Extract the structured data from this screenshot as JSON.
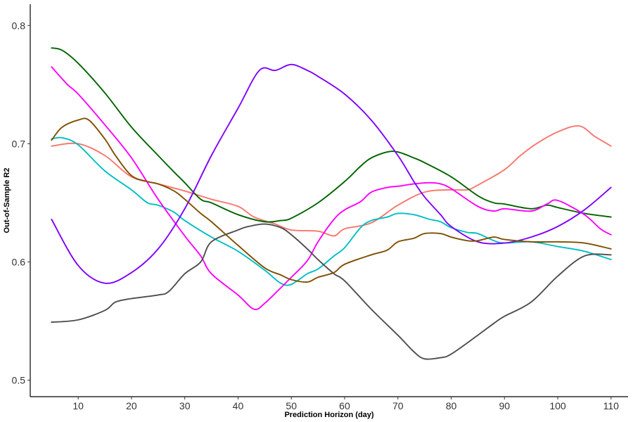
{
  "chart_data": {
    "type": "line",
    "title": "",
    "xlabel": "Prediction Horizon (day)",
    "ylabel": "Out-of-Sample R2",
    "xlim": [
      1,
      113.2
    ],
    "ylim": [
      0.486,
      0.818
    ],
    "x_ticks": [
      10,
      20,
      30,
      40,
      50,
      60,
      70,
      80,
      90,
      100,
      110
    ],
    "y_ticks": [
      0.5,
      0.6,
      0.7,
      0.8
    ],
    "x_tick_labels": [
      "10",
      "20",
      "30",
      "40",
      "50",
      "60",
      "70",
      "80",
      "90",
      "100",
      "110"
    ],
    "y_tick_labels": [
      "0.5",
      "0.6",
      "0.7",
      "0.8"
    ],
    "grid": false,
    "legend": "none",
    "series": [
      {
        "color": "#F8766D",
        "x": [
          5,
          10,
          15,
          20,
          25,
          30,
          35,
          40,
          43,
          47,
          50,
          55,
          58,
          60,
          65,
          70,
          75,
          80,
          83,
          85,
          90,
          93,
          96,
          100,
          104,
          107,
          110
        ],
        "y": [
          0.698,
          0.7,
          0.69,
          0.672,
          0.666,
          0.66,
          0.653,
          0.647,
          0.638,
          0.632,
          0.627,
          0.626,
          0.622,
          0.628,
          0.633,
          0.648,
          0.659,
          0.661,
          0.661,
          0.665,
          0.678,
          0.69,
          0.7,
          0.71,
          0.715,
          0.706,
          0.698
        ]
      },
      {
        "color": "#00BFC4",
        "x": [
          5,
          7,
          10,
          15,
          20,
          23,
          25,
          28,
          30,
          35,
          40,
          45,
          48,
          50,
          53,
          55,
          58,
          60,
          63,
          65,
          68,
          70,
          73,
          76,
          78,
          80,
          83,
          85,
          88,
          90,
          95,
          100,
          105,
          110
        ],
        "y": [
          0.704,
          0.705,
          0.699,
          0.677,
          0.661,
          0.65,
          0.648,
          0.642,
          0.635,
          0.621,
          0.609,
          0.593,
          0.582,
          0.581,
          0.59,
          0.594,
          0.605,
          0.612,
          0.629,
          0.635,
          0.638,
          0.641,
          0.64,
          0.636,
          0.634,
          0.629,
          0.625,
          0.624,
          0.618,
          0.616,
          0.617,
          0.613,
          0.609,
          0.602
        ]
      },
      {
        "color": "#006400",
        "x": [
          5,
          7,
          10,
          15,
          20,
          25,
          28,
          30,
          33,
          35,
          40,
          45,
          48,
          50,
          55,
          60,
          63,
          65,
          68,
          70,
          73,
          75,
          80,
          85,
          88,
          90,
          95,
          98,
          100,
          105,
          110
        ],
        "y": [
          0.781,
          0.779,
          0.768,
          0.743,
          0.714,
          0.69,
          0.676,
          0.667,
          0.653,
          0.65,
          0.64,
          0.634,
          0.635,
          0.637,
          0.65,
          0.668,
          0.681,
          0.688,
          0.693,
          0.693,
          0.688,
          0.684,
          0.672,
          0.656,
          0.65,
          0.649,
          0.645,
          0.648,
          0.646,
          0.641,
          0.638
        ]
      },
      {
        "color": "#FF00FF",
        "x": [
          5,
          8,
          10,
          15,
          20,
          25,
          30,
          33,
          35,
          40,
          43,
          45,
          48,
          50,
          53,
          55,
          58,
          60,
          63,
          65,
          68,
          70,
          73,
          76,
          78,
          80,
          85,
          88,
          90,
          95,
          98,
          100,
          105,
          108,
          110
        ],
        "y": [
          0.765,
          0.75,
          0.742,
          0.716,
          0.688,
          0.653,
          0.622,
          0.605,
          0.59,
          0.572,
          0.56,
          0.565,
          0.578,
          0.587,
          0.601,
          0.617,
          0.636,
          0.644,
          0.651,
          0.659,
          0.663,
          0.664,
          0.666,
          0.667,
          0.666,
          0.662,
          0.647,
          0.643,
          0.645,
          0.643,
          0.649,
          0.652,
          0.64,
          0.628,
          0.623
        ]
      },
      {
        "color": "#7F00FF",
        "x": [
          5,
          10,
          15,
          20,
          25,
          30,
          35,
          40,
          44,
          47,
          50,
          53,
          55,
          60,
          65,
          70,
          73,
          75,
          78,
          80,
          85,
          90,
          95,
          100,
          105,
          110
        ],
        "y": [
          0.636,
          0.597,
          0.582,
          0.591,
          0.611,
          0.645,
          0.69,
          0.73,
          0.762,
          0.762,
          0.767,
          0.762,
          0.757,
          0.742,
          0.72,
          0.69,
          0.668,
          0.655,
          0.64,
          0.63,
          0.617,
          0.616,
          0.621,
          0.63,
          0.644,
          0.663
        ]
      },
      {
        "color": "#4D4D4D",
        "x": [
          5,
          10,
          15,
          17,
          20,
          25,
          27,
          30,
          33,
          35,
          40,
          42,
          45,
          48,
          50,
          53,
          55,
          58,
          60,
          65,
          70,
          73,
          75,
          78,
          80,
          85,
          88,
          90,
          95,
          100,
          105,
          110
        ],
        "y": [
          0.549,
          0.551,
          0.559,
          0.566,
          0.569,
          0.572,
          0.575,
          0.59,
          0.6,
          0.617,
          0.627,
          0.63,
          0.632,
          0.629,
          0.623,
          0.611,
          0.602,
          0.59,
          0.584,
          0.56,
          0.538,
          0.524,
          0.518,
          0.519,
          0.522,
          0.538,
          0.548,
          0.554,
          0.566,
          0.588,
          0.605,
          0.606
        ]
      },
      {
        "color": "#7F4F00",
        "x": [
          5,
          7,
          10,
          12,
          15,
          17,
          20,
          23,
          25,
          28,
          30,
          33,
          35,
          40,
          45,
          48,
          50,
          53,
          55,
          58,
          60,
          65,
          68,
          70,
          73,
          75,
          78,
          80,
          83,
          85,
          88,
          90,
          95,
          100,
          105,
          110
        ],
        "y": [
          0.703,
          0.714,
          0.72,
          0.72,
          0.704,
          0.69,
          0.673,
          0.668,
          0.666,
          0.66,
          0.653,
          0.641,
          0.634,
          0.614,
          0.595,
          0.589,
          0.585,
          0.583,
          0.587,
          0.591,
          0.598,
          0.606,
          0.61,
          0.617,
          0.62,
          0.624,
          0.624,
          0.621,
          0.618,
          0.618,
          0.621,
          0.619,
          0.617,
          0.617,
          0.616,
          0.611
        ]
      }
    ]
  }
}
